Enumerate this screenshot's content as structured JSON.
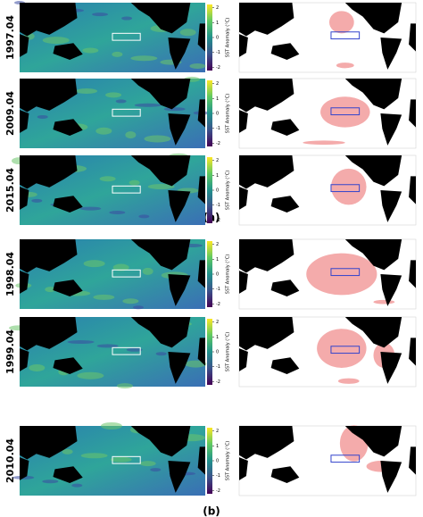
{
  "panels": [
    {
      "label": "(a)",
      "rows": [
        "1997.04",
        "2009.04",
        "2015.04"
      ]
    },
    {
      "label": "(b)",
      "rows": [
        "1998.04",
        "1999.04",
        "2010.04"
      ]
    }
  ],
  "colorbar": {
    "label": "SST Anomaly (°C)",
    "ticks": [
      -2,
      -1,
      0,
      1,
      2
    ]
  }
}
